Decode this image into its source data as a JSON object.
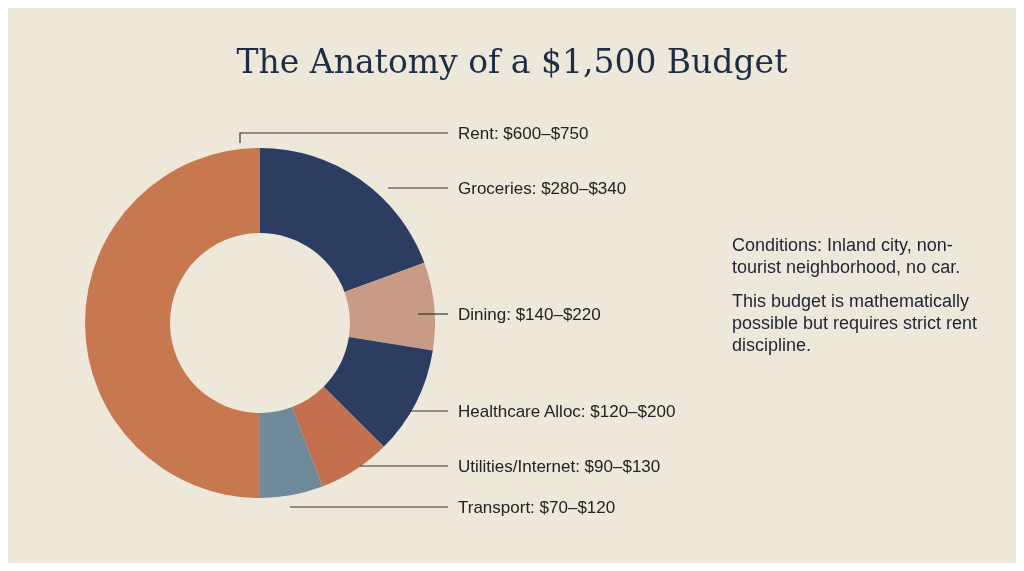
{
  "chart_data": {
    "type": "donut",
    "title": "The Anatomy of a $1,500 Budget",
    "categories": [
      "Groceries: $280–$340",
      "Dining: $140–$220",
      "Healthcare Alloc: $120–$200",
      "Utilities/Internet: $90–$130",
      "Transport: $70–$120",
      "Rent: $600–$750"
    ],
    "values": [
      19.4,
      8.1,
      10,
      6.7,
      5.8,
      50
    ],
    "colors": [
      "#2c3d62",
      "#c99b86",
      "#2c3d62",
      "#c46f4e",
      "#6f8a9b",
      "#c8784f"
    ],
    "legend": false,
    "annotations": [
      "Conditions: Inland city, non-tourist neighborhood, no car.",
      "This budget is mathematically possible but requires strict rent discipline."
    ]
  }
}
